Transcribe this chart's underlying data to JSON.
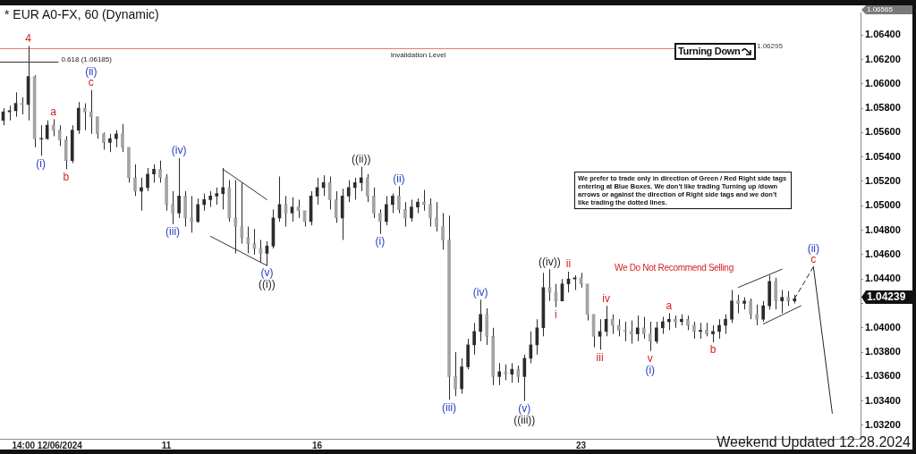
{
  "chart_data": {
    "type": "candlestick",
    "title": "* EUR A0-FX, 60 (Dynamic)",
    "categories": [
      null,
      null,
      null,
      null,
      null,
      null,
      null,
      "14:00 12/06/2024",
      null,
      null,
      null,
      null,
      null,
      null,
      null,
      null,
      null,
      null,
      null,
      null,
      null,
      null,
      null,
      null,
      null,
      null,
      "11",
      null,
      null,
      null,
      null,
      null,
      null,
      null,
      null,
      null,
      null,
      null,
      null,
      null,
      null,
      null,
      null,
      null,
      null,
      null,
      null,
      null,
      null,
      null,
      "16",
      null,
      null,
      null,
      null,
      null,
      null,
      null,
      null,
      null,
      null,
      null,
      null,
      null,
      null,
      null,
      null,
      null,
      null,
      null,
      null,
      null,
      null,
      null,
      null,
      null,
      null,
      null,
      null,
      null,
      null,
      null,
      null,
      null,
      null,
      null,
      null,
      null,
      null,
      null,
      null,
      null,
      "23",
      null,
      null,
      null,
      null,
      null,
      null,
      null,
      null,
      null,
      null,
      null,
      null,
      null,
      null,
      null,
      null,
      null,
      null,
      null,
      null,
      null,
      null,
      null,
      null,
      null,
      null,
      null,
      null,
      null,
      null,
      null,
      null,
      null,
      null,
      null,
      null,
      null,
      null,
      null,
      null,
      null,
      null,
      null,
      null
    ],
    "color": "#2b2b2b",
    "marker": "none",
    "colors": [
      "#2b2b2b",
      "#2b2b2b",
      "#2b2b2b",
      "#a3a3a3",
      "#2b2b2b",
      "#a3a3a3",
      "#2b2b2b",
      "#2b2b2b",
      "#a3a3a3",
      "#a3a3a3",
      "#a3a3a3",
      "#2b2b2b",
      "#2b2b2b",
      "#a3a3a3",
      "#a3a3a3",
      "#a3a3a3",
      "#a3a3a3",
      "#2b2b2b",
      "#2b2b2b",
      "#a3a3a3",
      "#a3a3a3",
      "#a3a3a3",
      "#2b2b2b",
      "#2b2b2b",
      "#2b2b2b",
      "#a3a3a3",
      "#a3a3a3",
      "#a3a3a3",
      "#2b2b2b",
      "#a3a3a3",
      "#a3a3a3",
      "#2b2b2b",
      "#2b2b2b",
      "#2b2b2b",
      "#2b2b2b",
      "#2b2b2b",
      "#a3a3a3",
      "#a3a3a3",
      "#a3a3a3",
      "#a3a3a3",
      "#a3a3a3",
      "#a3a3a3",
      "#2b2b2b",
      "#2b2b2b",
      "#2b2b2b",
      "#a3a3a3",
      "#2b2b2b",
      "#a3a3a3",
      "#a3a3a3",
      "#2b2b2b",
      "#2b2b2b",
      "#2b2b2b",
      "#a3a3a3",
      "#a3a3a3",
      "#2b2b2b",
      "#2b2b2b",
      "#2b2b2b",
      "#2b2b2b",
      "#a3a3a3",
      "#a3a3a3",
      "#a3a3a3",
      "#2b2b2b",
      "#2b2b2b",
      "#a3a3a3",
      "#a3a3a3",
      "#2b2b2b",
      "#2b2b2b",
      "#a3a3a3",
      "#a3a3a3",
      "#a3a3a3",
      "#a3a3a3",
      "#a3a3a3",
      "#a3a3a3",
      "#2b2b2b",
      "#2b2b2b",
      "#2b2b2b",
      "#2b2b2b",
      "#a3a3a3",
      "#a3a3a3",
      "#2b2b2b",
      "#a3a3a3",
      "#2b2b2b",
      "#a3a3a3",
      "#2b2b2b",
      "#2b2b2b",
      "#2b2b2b",
      "#2b2b2b",
      "#a3a3a3",
      "#a3a3a3",
      "#2b2b2b",
      "#2b2b2b",
      "#2b2b2b",
      "#a3a3a3",
      "#a3a3a3",
      "#a3a3a3",
      "#2b2b2b",
      "#2b2b2b",
      "#a3a3a3",
      "#a3a3a3",
      "#a3a3a3",
      "#a3a3a3",
      "#2b2b2b",
      "#a3a3a3",
      "#a3a3a3",
      "#2b2b2b",
      "#2b2b2b",
      "#2b2b2b",
      "#a3a3a3",
      "#2b2b2b",
      "#a3a3a3",
      "#a3a3a3",
      "#2b2b2b",
      "#a3a3a3",
      "#2b2b2b",
      "#2b2b2b",
      "#2b2b2b",
      "#2b2b2b",
      "#a3a3a3",
      "#2b2b2b",
      "#a3a3a3",
      "#a3a3a3",
      "#2b2b2b",
      "#2b2b2b",
      "#a3a3a3",
      "#2b2b2b",
      "#a3a3a3",
      "#2b2b2b",
      null,
      null,
      null,
      null,
      null,
      null,
      null,
      null,
      null,
      null
    ],
    "ohlc": [
      [
        1.057,
        1.058,
        1.0566,
        1.0577
      ],
      [
        1.0577,
        1.0582,
        1.057,
        1.0578
      ],
      [
        1.0578,
        1.0593,
        1.0573,
        1.0584
      ],
      [
        1.0584,
        1.0589,
        1.0575,
        1.0583
      ],
      [
        1.0583,
        1.0631,
        1.057,
        1.0606
      ],
      [
        1.0606,
        1.0607,
        1.0548,
        1.0555
      ],
      [
        1.0555,
        1.0566,
        1.0541,
        1.0555
      ],
      [
        1.0555,
        1.057,
        1.0554,
        1.0566
      ],
      [
        1.0566,
        1.0571,
        1.0557,
        1.0562
      ],
      [
        1.0562,
        1.0566,
        1.0549,
        1.0554
      ],
      [
        1.0554,
        1.0557,
        1.053,
        1.0537
      ],
      [
        1.0537,
        1.0566,
        1.0535,
        1.0562
      ],
      [
        1.0562,
        1.0585,
        1.0559,
        1.058
      ],
      [
        1.058,
        1.0584,
        1.0562,
        1.0577
      ],
      [
        1.0577,
        1.0595,
        1.0559,
        1.0573
      ],
      [
        1.0573,
        1.0573,
        1.0555,
        1.0559
      ],
      [
        1.0559,
        1.056,
        1.0546,
        1.0552
      ],
      [
        1.0552,
        1.0559,
        1.0544,
        1.0555
      ],
      [
        1.0555,
        1.0562,
        1.0548,
        1.0559
      ],
      [
        1.0559,
        1.0567,
        1.0544,
        1.0548
      ],
      [
        1.0548,
        1.0548,
        1.0519,
        1.0523
      ],
      [
        1.0523,
        1.0534,
        1.0508,
        1.0512
      ],
      [
        1.0512,
        1.0523,
        1.0496,
        1.0515
      ],
      [
        1.0515,
        1.0531,
        1.0512,
        1.0526
      ],
      [
        1.0526,
        1.0534,
        1.0519,
        1.053
      ],
      [
        1.053,
        1.0537,
        1.0519,
        1.0523
      ],
      [
        1.0523,
        1.0526,
        1.0496,
        1.0501
      ],
      [
        1.0501,
        1.0512,
        1.0485,
        1.0494
      ],
      [
        1.0494,
        1.0539,
        1.049,
        1.0508
      ],
      [
        1.0508,
        1.0512,
        1.0483,
        1.049
      ],
      [
        1.049,
        1.0508,
        1.0478,
        1.0487
      ],
      [
        1.0487,
        1.0506,
        1.0486,
        1.0501
      ],
      [
        1.0501,
        1.051,
        1.0496,
        1.0505
      ],
      [
        1.0505,
        1.0512,
        1.0499,
        1.0508
      ],
      [
        1.0508,
        1.0515,
        1.0501,
        1.051
      ],
      [
        1.051,
        1.0531,
        1.0497,
        1.0515
      ],
      [
        1.0515,
        1.0521,
        1.0487,
        1.049
      ],
      [
        1.049,
        1.0521,
        1.0461,
        1.0483
      ],
      [
        1.0483,
        1.0519,
        1.0469,
        1.0474
      ],
      [
        1.0474,
        1.0483,
        1.0461,
        1.0469
      ],
      [
        1.0469,
        1.0481,
        1.046,
        1.0465
      ],
      [
        1.0465,
        1.0472,
        1.0454,
        1.0461
      ],
      [
        1.0461,
        1.0471,
        1.0451,
        1.0467
      ],
      [
        1.0467,
        1.0497,
        1.0465,
        1.049
      ],
      [
        1.049,
        1.0524,
        1.0487,
        1.0501
      ],
      [
        1.0501,
        1.0508,
        1.0483,
        1.0494
      ],
      [
        1.0494,
        1.0507,
        1.0487,
        1.0499
      ],
      [
        1.0499,
        1.0505,
        1.049,
        1.0496
      ],
      [
        1.0496,
        1.0496,
        1.0483,
        1.0487
      ],
      [
        1.0487,
        1.0512,
        1.0484,
        1.0508
      ],
      [
        1.0508,
        1.0523,
        1.0501,
        1.0515
      ],
      [
        1.0515,
        1.0525,
        1.0508,
        1.0519
      ],
      [
        1.0519,
        1.0524,
        1.0497,
        1.0505
      ],
      [
        1.0505,
        1.0512,
        1.0486,
        1.049
      ],
      [
        1.049,
        1.0514,
        1.0472,
        1.0508
      ],
      [
        1.0508,
        1.0521,
        1.0503,
        1.0515
      ],
      [
        1.0515,
        1.0523,
        1.0505,
        1.0519
      ],
      [
        1.0519,
        1.0532,
        1.0512,
        1.0523
      ],
      [
        1.0523,
        1.0526,
        1.0503,
        1.0508
      ],
      [
        1.0508,
        1.0515,
        1.049,
        1.0494
      ],
      [
        1.0494,
        1.0497,
        1.0477,
        1.0487
      ],
      [
        1.0487,
        1.0508,
        1.0484,
        1.0501
      ],
      [
        1.0501,
        1.051,
        1.0494,
        1.0508
      ],
      [
        1.0508,
        1.0516,
        1.0494,
        1.0497
      ],
      [
        1.0497,
        1.0503,
        1.0483,
        1.049
      ],
      [
        1.049,
        1.0505,
        1.0487,
        1.0499
      ],
      [
        1.0499,
        1.0506,
        1.0494,
        1.0503
      ],
      [
        1.0503,
        1.0513,
        1.0496,
        1.0501
      ],
      [
        1.0501,
        1.0506,
        1.0483,
        1.049
      ],
      [
        1.049,
        1.0503,
        1.0479,
        1.0483
      ],
      [
        1.0483,
        1.0494,
        1.0464,
        1.0472
      ],
      [
        1.0472,
        1.0492,
        1.0341,
        1.036
      ],
      [
        1.036,
        1.038,
        1.0344,
        1.035
      ],
      [
        1.035,
        1.0375,
        1.0346,
        1.0368
      ],
      [
        1.0368,
        1.0391,
        1.0366,
        1.0386
      ],
      [
        1.0386,
        1.0404,
        1.0378,
        1.0397
      ],
      [
        1.0397,
        1.0423,
        1.0389,
        1.0411
      ],
      [
        1.0411,
        1.0416,
        1.0386,
        1.0393
      ],
      [
        1.0393,
        1.04,
        1.0353,
        1.036
      ],
      [
        1.036,
        1.0371,
        1.0353,
        1.0364
      ],
      [
        1.0364,
        1.037,
        1.0357,
        1.0362
      ],
      [
        1.0362,
        1.0371,
        1.0355,
        1.0366
      ],
      [
        1.0366,
        1.0369,
        1.0355,
        1.036
      ],
      [
        1.036,
        1.0378,
        1.034,
        1.0375
      ],
      [
        1.0375,
        1.0397,
        1.0371,
        1.0386
      ],
      [
        1.0386,
        1.0407,
        1.0378,
        1.04
      ],
      [
        1.04,
        1.0445,
        1.0393,
        1.0433
      ],
      [
        1.0433,
        1.0448,
        1.0422,
        1.0429
      ],
      [
        1.0429,
        1.0436,
        1.0417,
        1.0422
      ],
      [
        1.0422,
        1.044,
        1.0422,
        1.0436
      ],
      [
        1.0436,
        1.0446,
        1.0429,
        1.044
      ],
      [
        1.044,
        1.0443,
        1.0431,
        1.0441
      ],
      [
        1.0441,
        1.0445,
        1.0433,
        1.0436
      ],
      [
        1.0436,
        1.0436,
        1.0406,
        1.0411
      ],
      [
        1.0411,
        1.0411,
        1.0384,
        1.0393
      ],
      [
        1.0393,
        1.0407,
        1.0382,
        1.0397
      ],
      [
        1.0397,
        1.0418,
        1.0393,
        1.0407
      ],
      [
        1.0407,
        1.0411,
        1.0395,
        1.0402
      ],
      [
        1.0402,
        1.0407,
        1.0393,
        1.0398
      ],
      [
        1.0398,
        1.0405,
        1.0389,
        1.0397
      ],
      [
        1.0397,
        1.0406,
        1.0387,
        1.0395
      ],
      [
        1.0395,
        1.041,
        1.0389,
        1.04
      ],
      [
        1.04,
        1.0409,
        1.0391,
        1.0395
      ],
      [
        1.0395,
        1.0405,
        1.0381,
        1.0389
      ],
      [
        1.0389,
        1.0405,
        1.0387,
        1.04
      ],
      [
        1.04,
        1.0409,
        1.0395,
        1.0405
      ],
      [
        1.0405,
        1.0412,
        1.0398,
        1.0407
      ],
      [
        1.0407,
        1.041,
        1.04,
        1.0405
      ],
      [
        1.0405,
        1.0411,
        1.0402,
        1.0407
      ],
      [
        1.0407,
        1.041,
        1.0398,
        1.0402
      ],
      [
        1.0402,
        1.0405,
        1.0391,
        1.0397
      ],
      [
        1.0397,
        1.0404,
        1.0391,
        1.0398
      ],
      [
        1.0398,
        1.0404,
        1.0393,
        1.0395
      ],
      [
        1.0395,
        1.0402,
        1.0388,
        1.0397
      ],
      [
        1.0397,
        1.0407,
        1.0391,
        1.0402
      ],
      [
        1.0402,
        1.0411,
        1.0395,
        1.0407
      ],
      [
        1.0407,
        1.0431,
        1.0404,
        1.0422
      ],
      [
        1.0422,
        1.0427,
        1.0412,
        1.042
      ],
      [
        1.042,
        1.0425,
        1.0415,
        1.0422
      ],
      [
        1.0422,
        1.0424,
        1.0407,
        1.0411
      ],
      [
        1.0411,
        1.0419,
        1.0402,
        1.0407
      ],
      [
        1.0407,
        1.0422,
        1.0405,
        1.0418
      ],
      [
        1.0418,
        1.0443,
        1.0415,
        1.0438
      ],
      [
        1.0438,
        1.0441,
        1.0415,
        1.0422
      ],
      [
        1.0422,
        1.0431,
        1.0412,
        1.0425
      ],
      [
        1.0425,
        1.043,
        1.0418,
        1.0422
      ],
      [
        1.0422,
        1.0427,
        1.042,
        1.04239
      ],
      null,
      null,
      null,
      null,
      null,
      null,
      null,
      null,
      null,
      null
    ],
    "series": [
      {
        "type": "line",
        "color": "#222222",
        "line_style": "dashed",
        "values": [
          null,
          null,
          null,
          null,
          null,
          null,
          null,
          null,
          null,
          null,
          null,
          null,
          null,
          null,
          null,
          null,
          null,
          null,
          null,
          null,
          null,
          null,
          null,
          null,
          null,
          null,
          null,
          null,
          null,
          null,
          null,
          null,
          null,
          null,
          null,
          null,
          null,
          null,
          null,
          null,
          null,
          null,
          null,
          null,
          null,
          null,
          null,
          null,
          null,
          null,
          null,
          null,
          null,
          null,
          null,
          null,
          null,
          null,
          null,
          null,
          null,
          null,
          null,
          null,
          null,
          null,
          null,
          null,
          null,
          null,
          null,
          null,
          null,
          null,
          null,
          null,
          null,
          null,
          null,
          null,
          null,
          null,
          null,
          null,
          null,
          null,
          null,
          null,
          null,
          null,
          null,
          null,
          null,
          null,
          null,
          null,
          null,
          null,
          null,
          null,
          null,
          null,
          null,
          null,
          null,
          null,
          null,
          null,
          null,
          null,
          null,
          null,
          null,
          null,
          null,
          null,
          null,
          null,
          null,
          null,
          null,
          null,
          null,
          null,
          null,
          null,
          1.04239,
          null,
          null,
          1.045,
          null,
          null,
          null,
          null,
          null,
          null,
          null
        ]
      },
      {
        "type": "line",
        "color": "#222222",
        "line_style": "solid",
        "values": [
          null,
          null,
          null,
          null,
          null,
          null,
          null,
          null,
          null,
          null,
          null,
          null,
          null,
          null,
          null,
          null,
          null,
          null,
          null,
          null,
          null,
          null,
          null,
          null,
          null,
          null,
          null,
          null,
          null,
          null,
          null,
          null,
          null,
          null,
          null,
          null,
          null,
          null,
          null,
          null,
          null,
          null,
          null,
          null,
          null,
          null,
          null,
          null,
          null,
          null,
          null,
          null,
          null,
          null,
          null,
          null,
          null,
          null,
          null,
          null,
          null,
          null,
          null,
          null,
          null,
          null,
          null,
          null,
          null,
          null,
          null,
          null,
          null,
          null,
          null,
          null,
          null,
          null,
          null,
          null,
          null,
          null,
          null,
          null,
          null,
          null,
          null,
          null,
          null,
          null,
          null,
          null,
          null,
          null,
          null,
          null,
          null,
          null,
          null,
          null,
          null,
          null,
          null,
          null,
          null,
          null,
          null,
          null,
          null,
          null,
          null,
          null,
          null,
          null,
          null,
          null,
          null,
          null,
          null,
          null,
          null,
          null,
          null,
          null,
          null,
          null,
          null,
          null,
          null,
          1.045,
          null,
          null,
          1.033,
          null,
          null,
          null,
          null
        ]
      },
      {
        "type": "line",
        "color": "#333333",
        "line_style": "solid",
        "values": [
          null,
          null,
          null,
          null,
          null,
          null,
          null,
          null,
          null,
          null,
          null,
          null,
          null,
          null,
          null,
          null,
          null,
          null,
          null,
          null,
          null,
          null,
          null,
          null,
          null,
          null,
          null,
          null,
          null,
          null,
          null,
          null,
          null,
          null,
          null,
          1.053,
          null,
          null,
          null,
          null,
          null,
          null,
          1.0505,
          null,
          null,
          null,
          null,
          null,
          null,
          null,
          null,
          null,
          null,
          null,
          null,
          null,
          null,
          null,
          null,
          null,
          null,
          null,
          null,
          null,
          null,
          null,
          null,
          null,
          null,
          null,
          null,
          null,
          null,
          null,
          null,
          null,
          null,
          null,
          null,
          null,
          null,
          null,
          null,
          null,
          null,
          null,
          null,
          null,
          null,
          null,
          null,
          null,
          null,
          null,
          null,
          null,
          null,
          null,
          null,
          null,
          null,
          null,
          null,
          null,
          null,
          null,
          null,
          null,
          null,
          null,
          null,
          null,
          null,
          null,
          null,
          null,
          null,
          null,
          null,
          null,
          null,
          null,
          null,
          null,
          null,
          null,
          null,
          null,
          null,
          null,
          null,
          null,
          null,
          null,
          null,
          null,
          null
        ]
      },
      {
        "type": "line",
        "color": "#333333",
        "line_style": "solid",
        "values": [
          null,
          null,
          null,
          null,
          null,
          null,
          null,
          null,
          null,
          null,
          null,
          null,
          null,
          null,
          null,
          null,
          null,
          null,
          null,
          null,
          null,
          null,
          null,
          null,
          null,
          null,
          null,
          null,
          null,
          null,
          null,
          null,
          null,
          1.0475,
          null,
          null,
          null,
          null,
          null,
          null,
          null,
          null,
          1.0451,
          null,
          null,
          null,
          null,
          null,
          null,
          null,
          null,
          null,
          null,
          null,
          null,
          null,
          null,
          null,
          null,
          null,
          null,
          null,
          null,
          null,
          null,
          null,
          null,
          null,
          null,
          null,
          null,
          null,
          null,
          null,
          null,
          null,
          null,
          null,
          null,
          null,
          null,
          null,
          null,
          null,
          null,
          null,
          null,
          null,
          null,
          null,
          null,
          null,
          null,
          null,
          null,
          null,
          null,
          null,
          null,
          null,
          null,
          null,
          null,
          null,
          null,
          null,
          null,
          null,
          null,
          null,
          null,
          null,
          null,
          null,
          null,
          null,
          null,
          null,
          null,
          null,
          null,
          null,
          null,
          null,
          null,
          null,
          null,
          null,
          null,
          null,
          null,
          null,
          null,
          null,
          null,
          null,
          null
        ]
      },
      {
        "type": "line",
        "color": "#333333",
        "line_style": "solid",
        "values": [
          null,
          null,
          null,
          null,
          null,
          null,
          null,
          null,
          null,
          null,
          null,
          null,
          null,
          null,
          null,
          null,
          null,
          null,
          null,
          null,
          null,
          null,
          null,
          null,
          null,
          null,
          null,
          null,
          null,
          null,
          null,
          null,
          null,
          null,
          null,
          null,
          null,
          null,
          null,
          null,
          null,
          null,
          null,
          null,
          null,
          null,
          null,
          null,
          null,
          null,
          null,
          null,
          null,
          null,
          null,
          null,
          null,
          null,
          null,
          null,
          null,
          null,
          null,
          null,
          null,
          null,
          null,
          null,
          null,
          null,
          null,
          null,
          null,
          null,
          null,
          null,
          null,
          null,
          null,
          null,
          null,
          null,
          null,
          null,
          null,
          null,
          null,
          null,
          null,
          null,
          null,
          null,
          null,
          null,
          null,
          null,
          null,
          null,
          null,
          null,
          null,
          null,
          null,
          null,
          null,
          null,
          null,
          null,
          null,
          null,
          null,
          null,
          null,
          null,
          null,
          null,
          null,
          1.0433,
          null,
          null,
          null,
          null,
          null,
          null,
          1.0448,
          null,
          null,
          null,
          null,
          null,
          null,
          null,
          null,
          null,
          null,
          null,
          null
        ]
      },
      {
        "type": "line",
        "color": "#333333",
        "line_style": "solid",
        "values": [
          null,
          null,
          null,
          null,
          null,
          null,
          null,
          null,
          null,
          null,
          null,
          null,
          null,
          null,
          null,
          null,
          null,
          null,
          null,
          null,
          null,
          null,
          null,
          null,
          null,
          null,
          null,
          null,
          null,
          null,
          null,
          null,
          null,
          null,
          null,
          null,
          null,
          null,
          null,
          null,
          null,
          null,
          null,
          null,
          null,
          null,
          null,
          null,
          null,
          null,
          null,
          null,
          null,
          null,
          null,
          null,
          null,
          null,
          null,
          null,
          null,
          null,
          null,
          null,
          null,
          null,
          null,
          null,
          null,
          null,
          null,
          null,
          null,
          null,
          null,
          null,
          null,
          null,
          null,
          null,
          null,
          null,
          null,
          null,
          null,
          null,
          null,
          null,
          null,
          null,
          null,
          null,
          null,
          null,
          null,
          null,
          null,
          null,
          null,
          null,
          null,
          null,
          null,
          null,
          null,
          null,
          null,
          null,
          null,
          null,
          null,
          null,
          null,
          null,
          null,
          null,
          null,
          null,
          null,
          null,
          null,
          1.0403,
          null,
          null,
          null,
          null,
          null,
          1.0418,
          null,
          null,
          null,
          null,
          null,
          null,
          null,
          null,
          null
        ]
      }
    ],
    "ylim": [
      1.0309,
      1.0658
    ],
    "yticks": [
      {
        "value": 1.032,
        "label": "1.03200"
      },
      {
        "value": 1.034,
        "label": "1.03400"
      },
      {
        "value": 1.036,
        "label": "1.03600"
      },
      {
        "value": 1.038,
        "label": "1.03800"
      },
      {
        "value": 1.04,
        "label": "1.04000"
      },
      {
        "value": 1.042,
        "label": null
      },
      {
        "value": 1.044,
        "label": "1.04400"
      },
      {
        "value": 1.046,
        "label": "1.04600"
      },
      {
        "value": 1.048,
        "label": "1.04800"
      },
      {
        "value": 1.05,
        "label": "1.05000"
      },
      {
        "value": 1.052,
        "label": "1.05200"
      },
      {
        "value": 1.054,
        "label": "1.05400"
      },
      {
        "value": 1.056,
        "label": "1.05600"
      },
      {
        "value": 1.058,
        "label": "1.05800"
      },
      {
        "value": 1.06,
        "label": "1.06000"
      },
      {
        "value": 1.062,
        "label": "1.06200"
      },
      {
        "value": 1.064,
        "label": "1.06400"
      }
    ],
    "ref_lines": [
      {
        "axis": "y",
        "value": 1.06295,
        "label": "Invalidation Level",
        "color": "#e07a7a"
      },
      {
        "axis": "y",
        "value": 1.06185,
        "label": "0.618 (1.06185)",
        "color": "#333333"
      }
    ],
    "annotations": [
      {
        "text": "4",
        "y": 1.0631
      },
      {
        "text": "(i)",
        "y": 1.0541
      },
      {
        "text": "a",
        "y": 1.0571
      },
      {
        "text": "b",
        "y": 1.053
      },
      {
        "text": "c",
        "y": 1.0595
      },
      {
        "text": "(ii)",
        "y": 1.0595
      },
      {
        "text": "(iii)",
        "y": 1.0485
      },
      {
        "text": "(iv)",
        "y": 1.0539
      },
      {
        "text": "(v)",
        "y": 1.0451
      },
      {
        "text": "((i))",
        "y": 1.0451
      },
      {
        "text": "((ii))",
        "y": 1.0532
      },
      {
        "text": "(i)",
        "y": 1.0477
      },
      {
        "text": "(ii)",
        "y": 1.0516
      },
      {
        "text": "(iii)",
        "y": 1.0341
      },
      {
        "text": "(iv)",
        "y": 1.0423
      },
      {
        "text": "(v)",
        "y": 1.034
      },
      {
        "text": "((iii))",
        "y": 1.034
      },
      {
        "text": "((iv))",
        "y": 1.0448
      },
      {
        "text": "i",
        "y": 1.0417
      },
      {
        "text": "ii",
        "y": 1.0446
      },
      {
        "text": "iii",
        "y": 1.0382
      },
      {
        "text": "iv",
        "y": 1.0418
      },
      {
        "text": "v",
        "y": 1.0381
      },
      {
        "text": "(i)",
        "y": 1.0381
      },
      {
        "text": "a",
        "y": 1.0412
      },
      {
        "text": "b",
        "y": 1.0388
      },
      {
        "text": "c",
        "y": 1.045
      },
      {
        "text": "(ii)",
        "y": 1.045
      },
      "1.04239",
      "1.06295",
      "1.06565",
      "We prefer to trade only in direction of Green / Red Right side tags entering at Blue Boxes. We don't like trading Turning up /down arrows or against the direction of Right side tags and we don't like trading the dotted lines.",
      "We Do Not Recommend Selling",
      "Turning Down",
      "Weekend Updated 12.28.2024"
    ]
  }
}
